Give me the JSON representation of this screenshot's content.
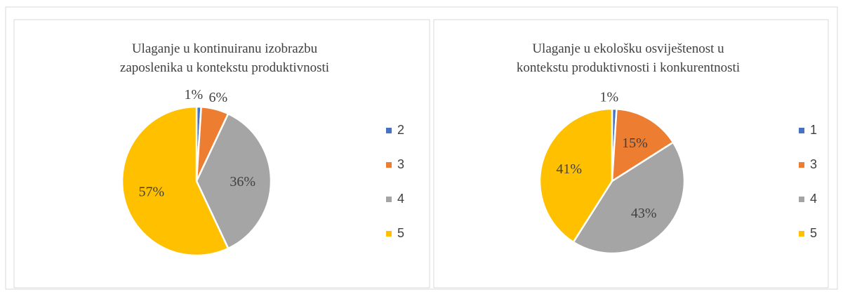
{
  "chart_data": [
    {
      "type": "pie",
      "title": [
        "Ulaganje u kontinuiranu izobrazbu",
        "zaposlenika u kontekstu produktivnosti"
      ],
      "categories": [
        "2",
        "3",
        "4",
        "5"
      ],
      "values": [
        1,
        6,
        36,
        57
      ],
      "value_labels": [
        "1%",
        "6%",
        "36%",
        "57%"
      ],
      "colors": [
        "#4472c4",
        "#ed7d31",
        "#a5a5a5",
        "#ffc000"
      ],
      "legend": "right"
    },
    {
      "type": "pie",
      "title": [
        "Ulaganje u ekološku osviještenost u",
        "kontekstu produktivnosti i konkurentnosti"
      ],
      "categories": [
        "1",
        "3",
        "4",
        "5"
      ],
      "values": [
        1,
        15,
        43,
        41
      ],
      "value_labels": [
        "1%",
        "15%",
        "43%",
        "41%"
      ],
      "colors": [
        "#4472c4",
        "#ed7d31",
        "#a5a5a5",
        "#ffc000"
      ],
      "legend": "right"
    }
  ]
}
